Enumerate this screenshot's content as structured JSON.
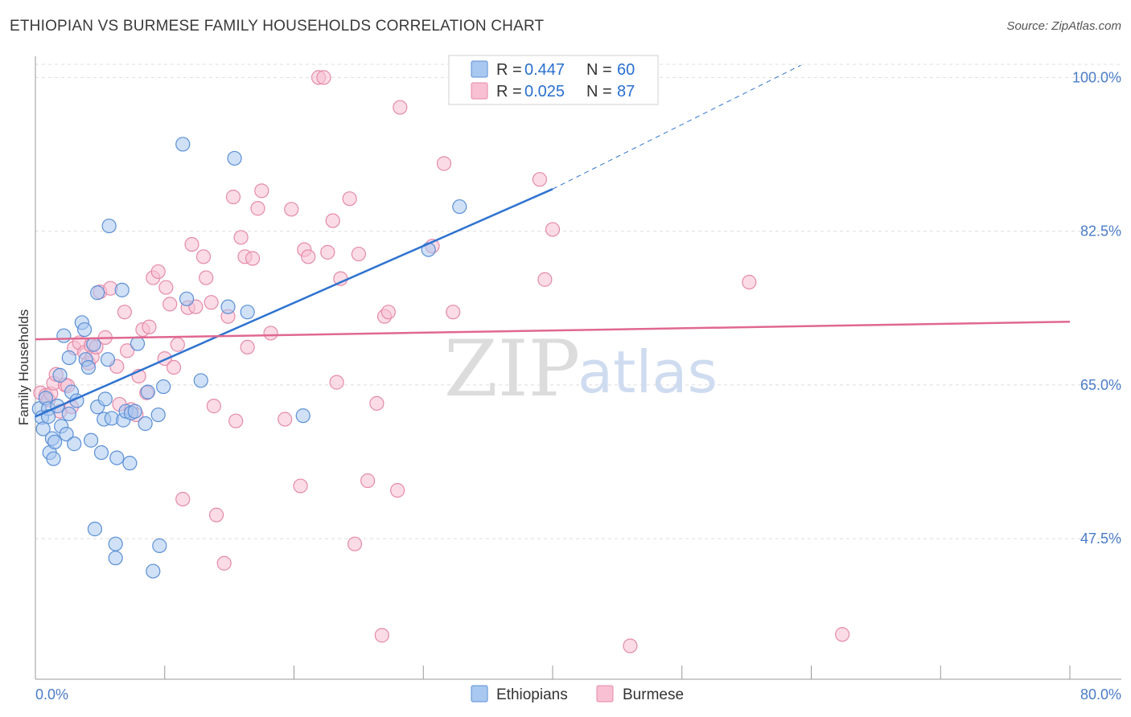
{
  "title": "ETHIOPIAN VS BURMESE FAMILY HOUSEHOLDS CORRELATION CHART",
  "source": "Source: ZipAtlas.com",
  "watermark": {
    "zip": "ZIP",
    "atlas": "atlas"
  },
  "colors": {
    "ethiopians_fill": "#a9c8f0",
    "ethiopians_stroke": "#5b8fd6",
    "ethiopians_line": "#2f73d0",
    "burmese_fill": "#f8c0d2",
    "burmese_stroke": "#e58aa8",
    "burmese_line": "#e06890",
    "grid": "#dedede",
    "tick_text": "#4a7cc7"
  },
  "legend": {
    "r_label": "R =",
    "n_label": "N =",
    "ethiopians": {
      "r": "0.447",
      "n": "60"
    },
    "burmese": {
      "r": "0.025",
      "n": "87"
    }
  },
  "chart_data": {
    "type": "scatter",
    "title": "ETHIOPIAN VS BURMESE FAMILY HOUSEHOLDS CORRELATION CHART",
    "xlabel": "",
    "ylabel": "Family Households",
    "xlim": [
      0,
      80
    ],
    "ylim": [
      31.5,
      101.5
    ],
    "x_tick_labels": {
      "left": "0.0%",
      "right": "80.0%"
    },
    "y_ticks": [
      {
        "value": 47.5,
        "label": "47.5%"
      },
      {
        "value": 65.0,
        "label": "65.0%"
      },
      {
        "value": 82.5,
        "label": "82.5%"
      },
      {
        "value": 100.0,
        "label": "100.0%"
      }
    ],
    "series": [
      {
        "name": "Ethiopians",
        "r": 0.447,
        "n": 60,
        "trendline": {
          "x0": 0.0,
          "y0": 61.4,
          "x1": 40.0,
          "y1": 87.3,
          "dashed_to_x": 59.2,
          "dashed_to_y": 101.4
        },
        "points": [
          [
            0.3,
            62.3
          ],
          [
            0.5,
            61.3
          ],
          [
            0.6,
            60.0
          ],
          [
            0.8,
            63.5
          ],
          [
            1.0,
            62.3
          ],
          [
            1.0,
            61.4
          ],
          [
            1.1,
            57.3
          ],
          [
            1.3,
            58.9
          ],
          [
            1.4,
            56.6
          ],
          [
            1.5,
            58.5
          ],
          [
            1.7,
            62.6
          ],
          [
            1.9,
            66.1
          ],
          [
            2.0,
            60.3
          ],
          [
            2.2,
            70.6
          ],
          [
            2.4,
            59.4
          ],
          [
            2.6,
            68.1
          ],
          [
            2.6,
            61.7
          ],
          [
            2.8,
            64.2
          ],
          [
            3.0,
            58.3
          ],
          [
            3.2,
            63.2
          ],
          [
            3.6,
            72.1
          ],
          [
            3.8,
            71.3
          ],
          [
            3.9,
            67.9
          ],
          [
            4.1,
            67.0
          ],
          [
            4.3,
            58.7
          ],
          [
            4.5,
            69.6
          ],
          [
            4.6,
            48.6
          ],
          [
            4.8,
            75.5
          ],
          [
            4.8,
            62.5
          ],
          [
            5.1,
            57.3
          ],
          [
            5.3,
            61.1
          ],
          [
            5.4,
            63.4
          ],
          [
            5.6,
            67.9
          ],
          [
            5.7,
            83.1
          ],
          [
            5.9,
            61.2
          ],
          [
            6.2,
            46.9
          ],
          [
            6.2,
            45.3
          ],
          [
            6.3,
            56.7
          ],
          [
            6.7,
            75.8
          ],
          [
            6.8,
            61.0
          ],
          [
            7.0,
            62.0
          ],
          [
            7.3,
            56.1
          ],
          [
            7.4,
            61.8
          ],
          [
            7.9,
            69.7
          ],
          [
            8.5,
            60.6
          ],
          [
            8.7,
            64.2
          ],
          [
            9.1,
            43.8
          ],
          [
            9.5,
            61.6
          ],
          [
            9.6,
            46.7
          ],
          [
            9.9,
            64.8
          ],
          [
            11.4,
            92.4
          ],
          [
            11.7,
            74.8
          ],
          [
            12.8,
            65.5
          ],
          [
            14.9,
            73.9
          ],
          [
            15.4,
            90.8
          ],
          [
            16.4,
            73.3
          ],
          [
            20.7,
            61.5
          ],
          [
            30.4,
            80.4
          ],
          [
            32.8,
            85.3
          ],
          [
            7.7,
            62.0
          ]
        ]
      },
      {
        "name": "Burmese",
        "r": 0.025,
        "n": 87,
        "trendline": {
          "x0": 0.0,
          "y0": 70.2,
          "x1": 80.0,
          "y1": 72.2
        },
        "points": [
          [
            0.4,
            64.1
          ],
          [
            0.8,
            63.8
          ],
          [
            1.0,
            63.3
          ],
          [
            1.2,
            64.0
          ],
          [
            1.4,
            65.2
          ],
          [
            1.6,
            66.2
          ],
          [
            1.9,
            62.0
          ],
          [
            2.3,
            65.0
          ],
          [
            2.5,
            64.9
          ],
          [
            2.8,
            62.5
          ],
          [
            3.0,
            69.2
          ],
          [
            3.4,
            69.8
          ],
          [
            3.8,
            68.7
          ],
          [
            4.1,
            67.5
          ],
          [
            4.3,
            69.5
          ],
          [
            4.4,
            68.2
          ],
          [
            4.7,
            69.3
          ],
          [
            5.0,
            75.6
          ],
          [
            5.4,
            70.4
          ],
          [
            5.8,
            76.0
          ],
          [
            6.3,
            67.1
          ],
          [
            6.5,
            62.8
          ],
          [
            6.9,
            73.3
          ],
          [
            7.1,
            68.9
          ],
          [
            7.4,
            62.2
          ],
          [
            7.8,
            61.6
          ],
          [
            8.0,
            66.0
          ],
          [
            8.3,
            71.3
          ],
          [
            8.6,
            64.1
          ],
          [
            8.8,
            71.6
          ],
          [
            9.1,
            77.2
          ],
          [
            9.5,
            77.9
          ],
          [
            10.0,
            68.0
          ],
          [
            10.1,
            76.1
          ],
          [
            10.4,
            74.2
          ],
          [
            10.7,
            67.0
          ],
          [
            11.0,
            69.6
          ],
          [
            11.4,
            52.0
          ],
          [
            11.8,
            73.8
          ],
          [
            12.1,
            81.0
          ],
          [
            12.4,
            73.9
          ],
          [
            13.0,
            79.6
          ],
          [
            13.2,
            77.2
          ],
          [
            13.6,
            74.4
          ],
          [
            13.8,
            62.6
          ],
          [
            14.0,
            50.2
          ],
          [
            14.6,
            44.7
          ],
          [
            14.9,
            72.8
          ],
          [
            15.3,
            86.4
          ],
          [
            15.5,
            60.9
          ],
          [
            15.9,
            81.8
          ],
          [
            16.2,
            79.6
          ],
          [
            16.4,
            69.3
          ],
          [
            16.8,
            79.4
          ],
          [
            17.2,
            85.1
          ],
          [
            17.5,
            87.1
          ],
          [
            18.2,
            70.9
          ],
          [
            19.3,
            61.1
          ],
          [
            19.8,
            85.0
          ],
          [
            20.5,
            53.5
          ],
          [
            20.8,
            80.4
          ],
          [
            21.1,
            79.6
          ],
          [
            21.9,
            100.0
          ],
          [
            22.3,
            100.0
          ],
          [
            22.6,
            80.1
          ],
          [
            23.0,
            83.7
          ],
          [
            23.3,
            65.3
          ],
          [
            23.6,
            77.1
          ],
          [
            24.3,
            86.2
          ],
          [
            24.7,
            46.9
          ],
          [
            25.0,
            79.9
          ],
          [
            25.7,
            54.1
          ],
          [
            26.4,
            62.9
          ],
          [
            26.8,
            36.5
          ],
          [
            27.0,
            72.8
          ],
          [
            27.3,
            73.3
          ],
          [
            28.0,
            53.0
          ],
          [
            28.2,
            96.6
          ],
          [
            30.7,
            80.8
          ],
          [
            31.6,
            90.2
          ],
          [
            32.3,
            73.3
          ],
          [
            39.0,
            88.4
          ],
          [
            39.4,
            77.0
          ],
          [
            40.0,
            82.7
          ],
          [
            46.0,
            35.3
          ],
          [
            55.2,
            76.7
          ],
          [
            62.4,
            36.6
          ]
        ]
      }
    ]
  }
}
